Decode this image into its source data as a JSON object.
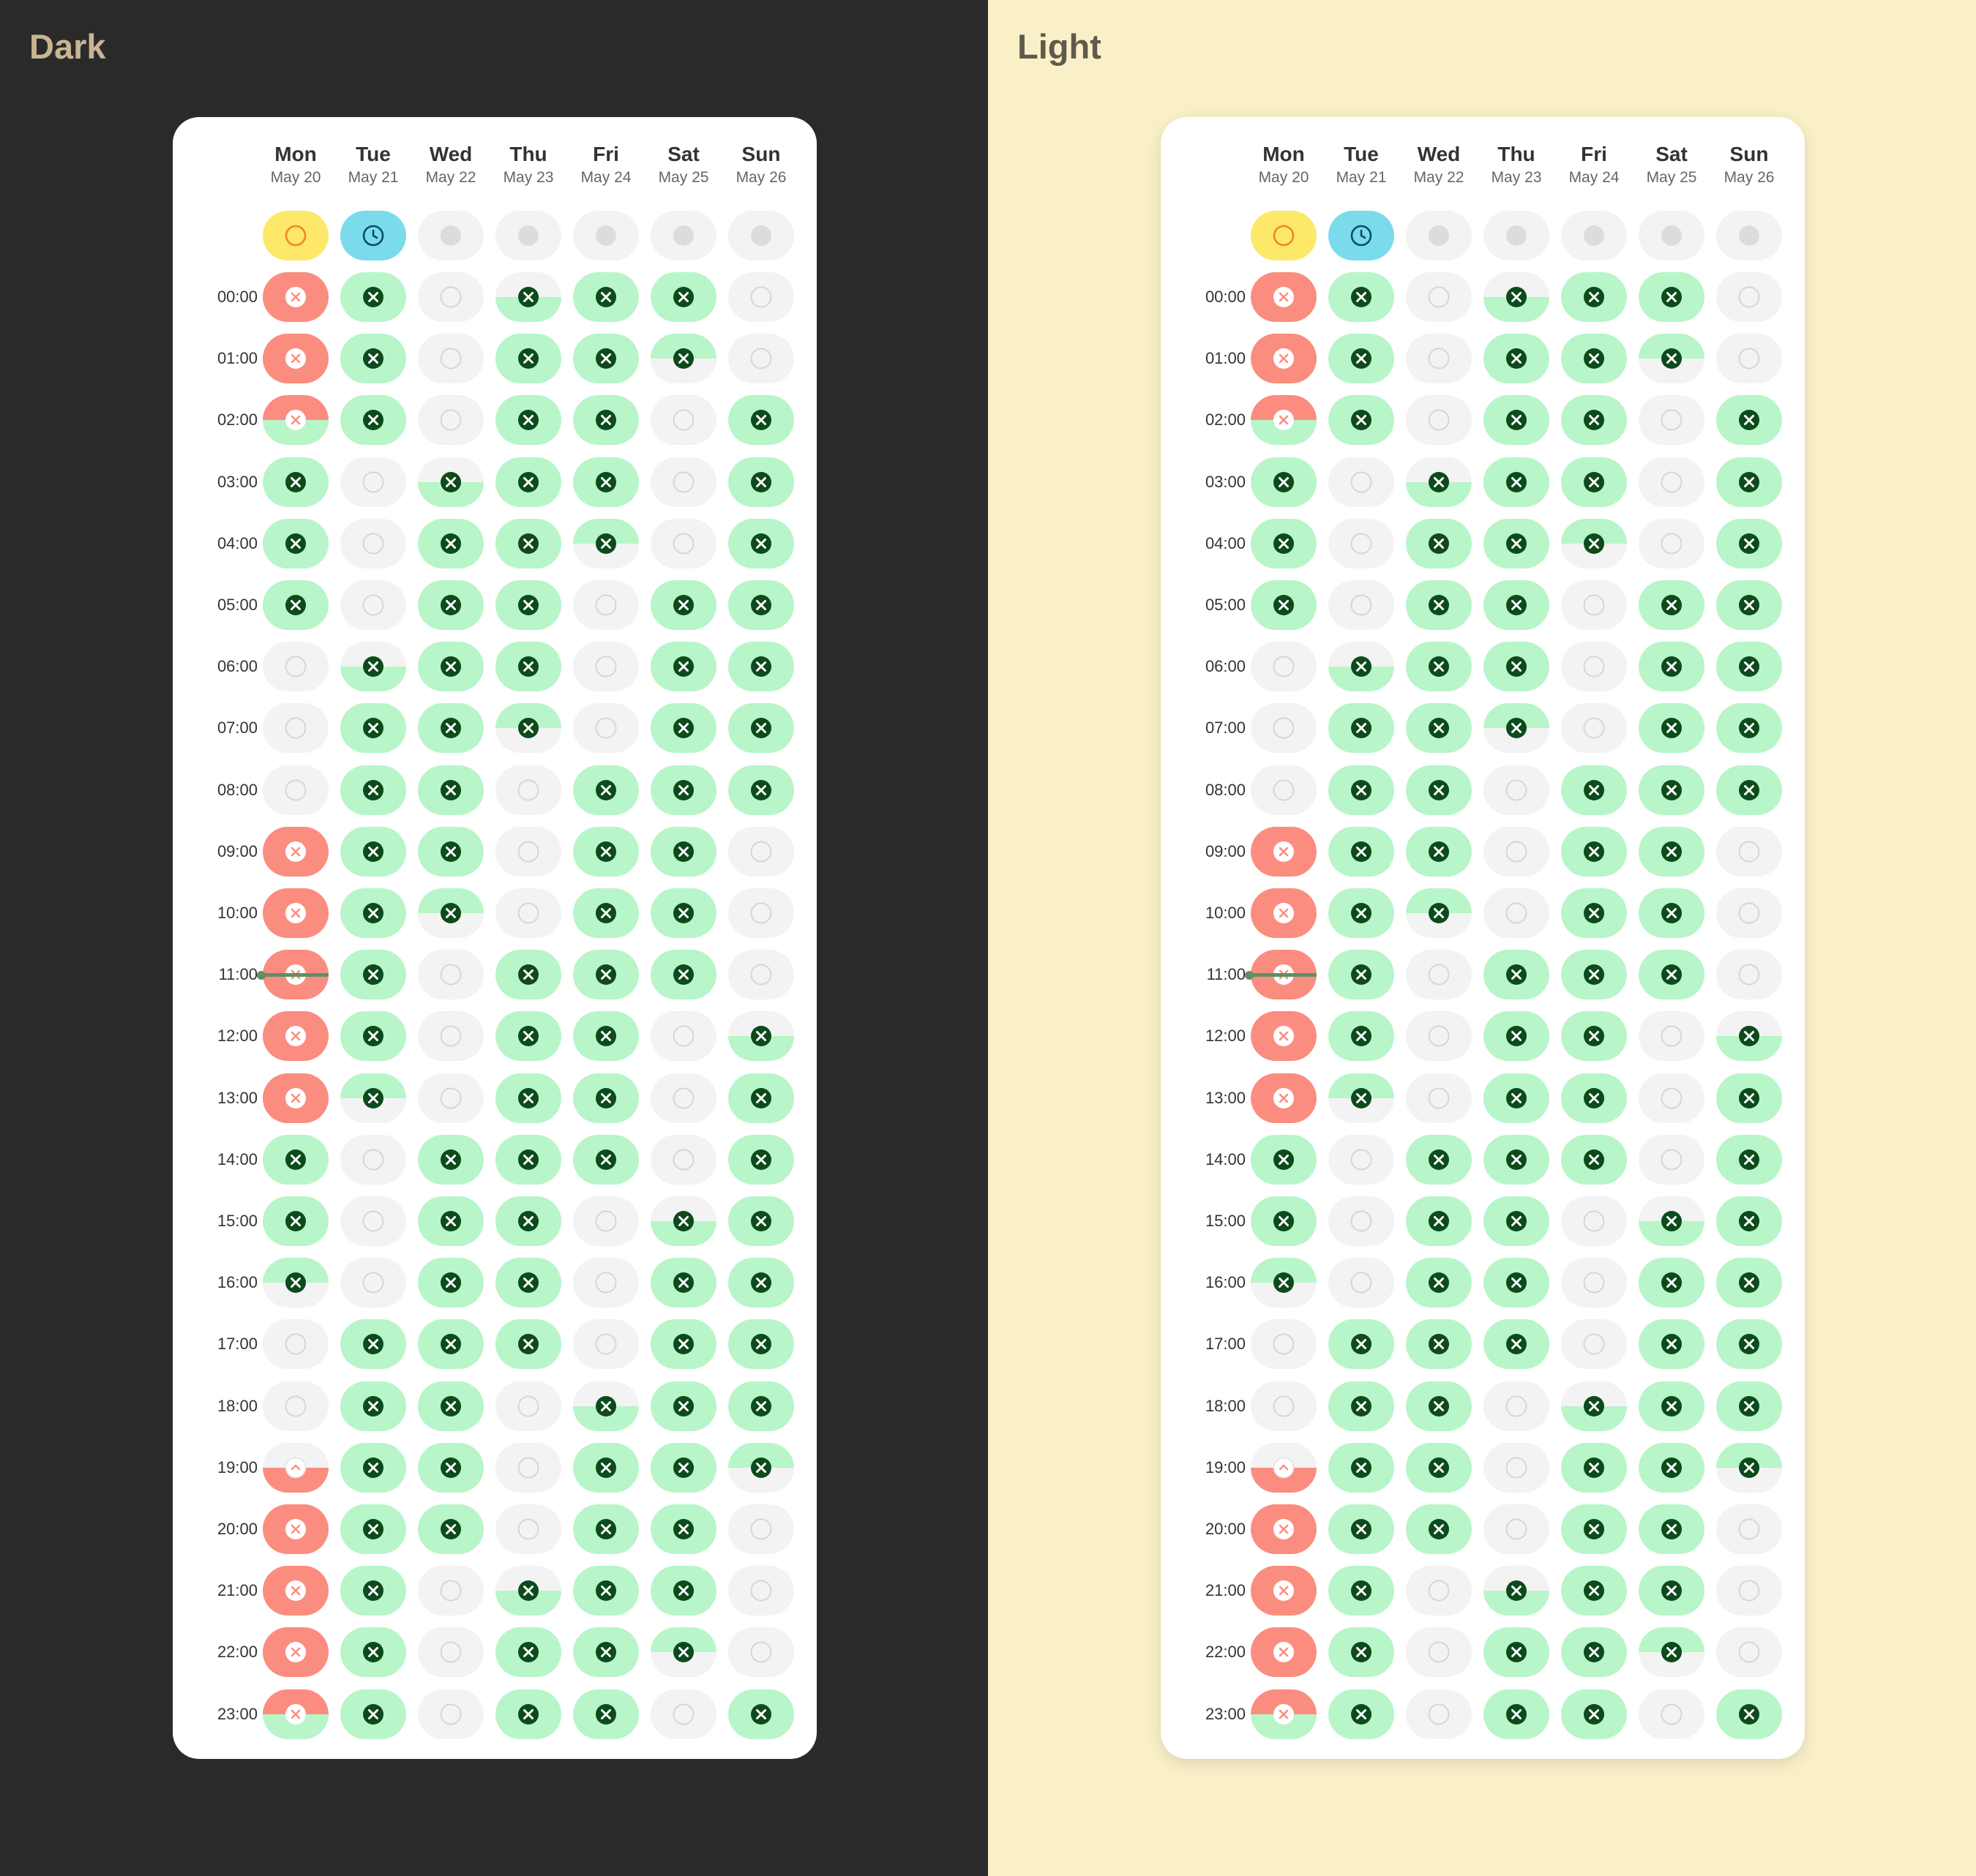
{
  "panels": [
    {
      "id": "dark",
      "title": "Dark"
    },
    {
      "id": "light",
      "title": "Light"
    }
  ],
  "days": [
    {
      "name": "Mon",
      "date": "May 20"
    },
    {
      "name": "Tue",
      "date": "May 21"
    },
    {
      "name": "Wed",
      "date": "May 22"
    },
    {
      "name": "Thu",
      "date": "May 23"
    },
    {
      "name": "Fri",
      "date": "May 24"
    },
    {
      "name": "Sat",
      "date": "May 25"
    },
    {
      "name": "Sun",
      "date": "May 26"
    }
  ],
  "summary_row": [
    "today-ring",
    "clock",
    "dot",
    "dot",
    "dot",
    "dot",
    "dot"
  ],
  "times": [
    "00:00",
    "01:00",
    "02:00",
    "03:00",
    "04:00",
    "05:00",
    "06:00",
    "07:00",
    "08:00",
    "09:00",
    "10:00",
    "11:00",
    "12:00",
    "13:00",
    "14:00",
    "15:00",
    "16:00",
    "17:00",
    "18:00",
    "19:00",
    "20:00",
    "21:00",
    "22:00",
    "23:00"
  ],
  "legend_states": {
    "Y": "available (green, x icon)",
    "N": "empty (gray, ring)",
    "R": "busy (red, x icon)",
    "T": "top half available",
    "B": "bottom half available",
    "RY": "top busy, bottom available",
    "RN": "top busy, bottom empty",
    "NR": "top empty, bottom busy"
  },
  "grid": [
    [
      "R",
      "Y",
      "N",
      "B",
      "Y",
      "Y",
      "N"
    ],
    [
      "R",
      "Y",
      "N",
      "Y",
      "Y",
      "T",
      "N"
    ],
    [
      "RY",
      "Y",
      "N",
      "Y",
      "Y",
      "N",
      "Y"
    ],
    [
      "Y",
      "N",
      "B",
      "Y",
      "Y",
      "N",
      "Y"
    ],
    [
      "Y",
      "N",
      "Y",
      "Y",
      "T",
      "N",
      "Y"
    ],
    [
      "Y",
      "N",
      "Y",
      "Y",
      "N",
      "Y",
      "Y"
    ],
    [
      "N",
      "B",
      "Y",
      "Y",
      "N",
      "Y",
      "Y"
    ],
    [
      "N",
      "Y",
      "Y",
      "T",
      "N",
      "Y",
      "Y"
    ],
    [
      "N",
      "Y",
      "Y",
      "N",
      "Y",
      "Y",
      "Y"
    ],
    [
      "R",
      "Y",
      "Y",
      "N",
      "Y",
      "Y",
      "N"
    ],
    [
      "R",
      "Y",
      "T",
      "N",
      "Y",
      "Y",
      "N"
    ],
    [
      "R",
      "Y",
      "N",
      "Y",
      "Y",
      "Y",
      "N"
    ],
    [
      "R",
      "Y",
      "N",
      "Y",
      "Y",
      "N",
      "B"
    ],
    [
      "R",
      "T",
      "N",
      "Y",
      "Y",
      "N",
      "Y"
    ],
    [
      "Y",
      "N",
      "Y",
      "Y",
      "Y",
      "N",
      "Y"
    ],
    [
      "Y",
      "N",
      "Y",
      "Y",
      "N",
      "B",
      "Y"
    ],
    [
      "T",
      "N",
      "Y",
      "Y",
      "N",
      "Y",
      "Y"
    ],
    [
      "N",
      "Y",
      "Y",
      "Y",
      "N",
      "Y",
      "Y"
    ],
    [
      "N",
      "Y",
      "Y",
      "N",
      "B",
      "Y",
      "Y"
    ],
    [
      "NR",
      "Y",
      "Y",
      "N",
      "Y",
      "Y",
      "T"
    ],
    [
      "R",
      "Y",
      "Y",
      "N",
      "Y",
      "Y",
      "N"
    ],
    [
      "R",
      "Y",
      "N",
      "B",
      "Y",
      "Y",
      "N"
    ],
    [
      "R",
      "Y",
      "N",
      "Y",
      "Y",
      "T",
      "N"
    ],
    [
      "RY",
      "Y",
      "N",
      "Y",
      "Y",
      "N",
      "Y"
    ]
  ],
  "now_indicator": {
    "day": 0,
    "hour": 11
  },
  "colors": {
    "available": "#b8f5c9",
    "busy": "#fb8d80",
    "empty": "#f3f3f3",
    "icon_dark_green": "#0d4a1c",
    "today": "#fde869",
    "clock": "#7adbea"
  }
}
